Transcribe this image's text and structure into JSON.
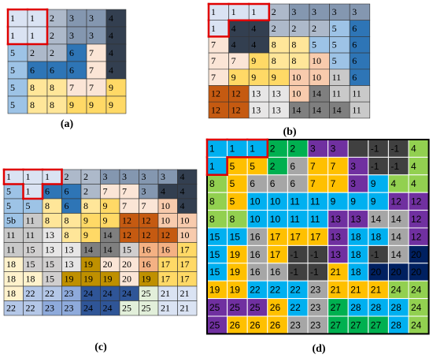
{
  "grids": [
    {
      "label": "(a)",
      "rows": [
        [
          "1",
          "1",
          "2",
          "3",
          "3",
          "4"
        ],
        [
          "1",
          "1",
          "2",
          "3",
          "3",
          "4"
        ],
        [
          "5",
          "2",
          "2",
          "6",
          "7",
          "4"
        ],
        [
          "5",
          "6",
          "6",
          "6",
          "7",
          "4"
        ],
        [
          "5",
          "8",
          "8",
          "7",
          "7",
          "9"
        ],
        [
          "5",
          "8",
          "8",
          "9",
          "9",
          "9"
        ]
      ]
    },
    {
      "label": "(b)",
      "rows": [
        [
          "1",
          "1",
          "1",
          "2",
          "3",
          "3",
          "3",
          "3"
        ],
        [
          "1",
          "4",
          "4",
          "2",
          "2",
          "2",
          "5",
          "6"
        ],
        [
          "7",
          "4",
          "4",
          "8",
          "8",
          "5",
          "5",
          "6"
        ],
        [
          "7",
          "7",
          "9",
          "8",
          "8",
          "10",
          "5",
          "6"
        ],
        [
          "7",
          "9",
          "9",
          "9",
          "10",
          "10",
          "11",
          "6"
        ],
        [
          "12",
          "12",
          "13",
          "13",
          "10",
          "14",
          "11",
          "11"
        ],
        [
          "12",
          "12",
          "13",
          "13",
          "14",
          "14",
          "14",
          "11"
        ]
      ]
    },
    {
      "label": "(c)",
      "rows": [
        [
          "1",
          "1",
          "1",
          "2",
          "2",
          "3",
          "3",
          "3",
          "3",
          "4"
        ],
        [
          "5",
          "1",
          "6",
          "6",
          "2",
          "7",
          "7",
          "3",
          "4",
          "4"
        ],
        [
          "5",
          "5",
          "8",
          "6",
          "8",
          "9",
          "7",
          "7",
          "10",
          "4"
        ],
        [
          "5b",
          "11",
          "8",
          "8",
          "9",
          "9",
          "12",
          "12",
          "10",
          "10"
        ],
        [
          "11",
          "11",
          "13",
          "8",
          "9",
          "14",
          "12",
          "12",
          "12",
          "10"
        ],
        [
          "11",
          "15",
          "13",
          "13",
          "14",
          "14",
          "15",
          "16",
          "16",
          "17"
        ],
        [
          "18",
          "15",
          "15",
          "13",
          "19",
          "20",
          "20",
          "16",
          "17",
          "17"
        ],
        [
          "18",
          "18",
          "15",
          "19",
          "19",
          "19",
          "20",
          "19",
          "17",
          "17"
        ],
        [
          "18",
          "22",
          "22",
          "23",
          "24",
          "24",
          "24",
          "25",
          "21",
          "21"
        ],
        [
          "22",
          "22",
          "23",
          "23",
          "24",
          "24",
          "25",
          "25",
          "21",
          "21"
        ]
      ]
    },
    {
      "label": "(d)",
      "rows": [
        [
          "1",
          "1",
          "1",
          "2",
          "2",
          "3",
          "3",
          null,
          "-1",
          "-1",
          "4"
        ],
        [
          "1",
          "5",
          "5",
          "2",
          "6",
          "7",
          "7",
          "3",
          "-1",
          "-1",
          "4"
        ],
        [
          "8",
          "5",
          "6",
          "6",
          "6",
          "7",
          "7",
          "3",
          "9",
          "4",
          "4"
        ],
        [
          "8",
          "5",
          "10",
          "10",
          "11",
          "11",
          "9",
          "9",
          "9",
          "12",
          "12"
        ],
        [
          "8",
          "8",
          "10",
          "10",
          "11",
          "11",
          "13",
          "13",
          "14",
          "14",
          "12"
        ],
        [
          "15",
          "15",
          "16",
          "17",
          "17",
          "17",
          "13",
          "18",
          "18",
          "14",
          "12"
        ],
        [
          "15",
          "19",
          "16",
          "17",
          "-1",
          "-1",
          "13",
          "18",
          "-1",
          "14",
          "20"
        ],
        [
          "15",
          "19",
          "16",
          "16",
          "-1",
          "-1",
          "21",
          "18",
          "20",
          "20",
          "20"
        ],
        [
          "19",
          "19",
          "22",
          "22",
          "22",
          "23",
          "21",
          "21",
          "21",
          "24",
          "24"
        ],
        [
          "25",
          "25",
          "25",
          "26",
          "22",
          "23",
          "27",
          "28",
          "28",
          "28",
          "24"
        ],
        [
          "25",
          "26",
          "26",
          "26",
          "23",
          "23",
          "27",
          "27",
          "27",
          "28",
          "24"
        ]
      ]
    }
  ]
}
